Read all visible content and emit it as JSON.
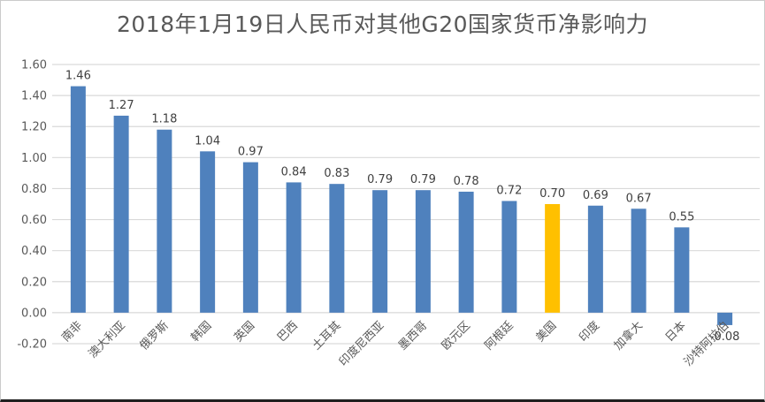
{
  "chart_data": {
    "type": "bar",
    "title": "2018年1月19日人民币对其他G20国家货币净影响力",
    "categories": [
      "南非",
      "澳大利亚",
      "俄罗斯",
      "韩国",
      "英国",
      "巴西",
      "土耳其",
      "印度尼西亚",
      "墨西哥",
      "欧元区",
      "阿根廷",
      "美国",
      "印度",
      "加拿大",
      "日本",
      "沙特阿拉伯"
    ],
    "values": [
      1.46,
      1.27,
      1.18,
      1.04,
      0.97,
      0.84,
      0.83,
      0.79,
      0.79,
      0.78,
      0.72,
      0.7,
      0.69,
      0.67,
      0.55,
      -0.08
    ],
    "value_labels": [
      "1.46",
      "1.27",
      "1.18",
      "1.04",
      "0.97",
      "0.84",
      "0.83",
      "0.79",
      "0.79",
      "0.78",
      "0.72",
      "0.70",
      "0.69",
      "0.67",
      "0.55",
      "-0.08"
    ],
    "highlight_index": 11,
    "highlight_category": "美国",
    "ytick_labels": [
      "1.60",
      "1.40",
      "1.20",
      "1.00",
      "0.80",
      "0.60",
      "0.40",
      "0.20",
      "0.00",
      "-0.20"
    ],
    "ylim": [
      -0.2,
      1.6
    ],
    "ytick_step": 0.2,
    "grid": true,
    "legend_position": "none",
    "xlabel": "",
    "ylabel": "",
    "colors": {
      "bar": "#4F81BD",
      "highlight": "#FFC000",
      "gridline": "#D9D9D9",
      "axis_text": "#595959",
      "value_label_text": "#404040",
      "title_text": "#595959",
      "background": "#FFFFFF",
      "frame_border": "#CBCBCB",
      "bottom_edge": "#1F1F1F"
    }
  }
}
